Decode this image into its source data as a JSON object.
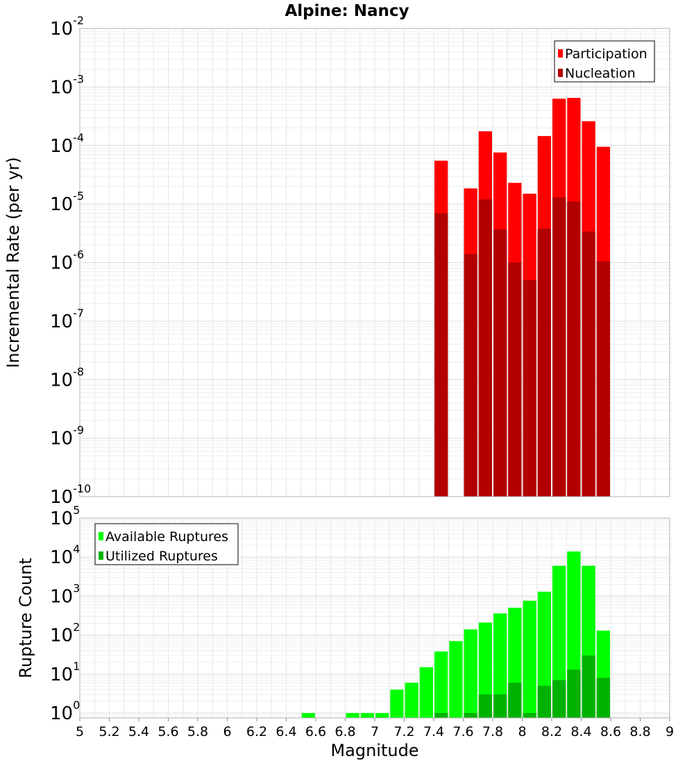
{
  "chart_data": [
    {
      "type": "bar",
      "title": "Alpine: Nancy",
      "xlabel": "",
      "ylabel": "Incremental Rate (per yr)",
      "yscale": "log",
      "ylim": [
        1e-10,
        0.01
      ],
      "xlim": [
        5,
        9
      ],
      "grid": true,
      "legend_position": "top-right",
      "bin_width": 0.1,
      "x": [
        7.4,
        7.6,
        7.7,
        7.8,
        7.9,
        8.0,
        8.1,
        8.2,
        8.3,
        8.4,
        8.5
      ],
      "series": [
        {
          "name": "Participation",
          "color": "#ff0000",
          "values": [
            5.5e-05,
            1.85e-05,
            0.000175,
            7.6e-05,
            2.3e-05,
            1.5e-05,
            0.000145,
            0.00063,
            0.00065,
            0.00026,
            9.5e-05
          ]
        },
        {
          "name": "Nucleation",
          "color": "#b20000",
          "values": [
            7e-06,
            1.4e-06,
            1.2e-05,
            3.7e-06,
            1e-06,
            5e-07,
            3.8e-06,
            1.3e-05,
            1.1e-05,
            3.4e-06,
            1.05e-06
          ]
        }
      ],
      "yticks": [
        {
          "base": "10",
          "exp": "-2"
        },
        {
          "base": "10",
          "exp": "-3"
        },
        {
          "base": "10",
          "exp": "-4"
        },
        {
          "base": "10",
          "exp": "-5"
        },
        {
          "base": "10",
          "exp": "-6"
        },
        {
          "base": "10",
          "exp": "-7"
        },
        {
          "base": "10",
          "exp": "-8"
        },
        {
          "base": "10",
          "exp": "-9"
        },
        {
          "base": "10",
          "exp": "-10"
        }
      ]
    },
    {
      "type": "bar",
      "title": "",
      "xlabel": "Magnitude",
      "ylabel": "Rupture Count",
      "yscale": "log",
      "ylim": [
        0.75,
        100000.0
      ],
      "xlim": [
        5,
        9
      ],
      "grid": true,
      "legend_position": "top-left",
      "bin_width": 0.1,
      "x": [
        6.5,
        6.8,
        6.9,
        7.0,
        7.1,
        7.2,
        7.3,
        7.4,
        7.5,
        7.6,
        7.7,
        7.8,
        7.9,
        8.0,
        8.1,
        8.2,
        8.3,
        8.4,
        8.5
      ],
      "series": [
        {
          "name": "Available Ruptures",
          "color": "#00ff00",
          "values": [
            1,
            1,
            1,
            1,
            4,
            6,
            15,
            38,
            70,
            140,
            210,
            360,
            500,
            760,
            1300,
            6000,
            14000,
            6000,
            130
          ]
        },
        {
          "name": "Utilized Ruptures",
          "color": "#00b200",
          "values": [
            0,
            0,
            0,
            0,
            0,
            0,
            0,
            1,
            0,
            1,
            3,
            3,
            6,
            1,
            5,
            7,
            13,
            30,
            8
          ]
        }
      ],
      "xticks": [
        "5",
        "5.2",
        "5.4",
        "5.6",
        "5.8",
        "6",
        "6.2",
        "6.4",
        "6.6",
        "6.8",
        "7",
        "7.2",
        "7.4",
        "7.6",
        "7.8",
        "8",
        "8.2",
        "8.4",
        "8.6",
        "8.8",
        "9"
      ],
      "yticks": [
        {
          "base": "10",
          "exp": "5"
        },
        {
          "base": "10",
          "exp": "4"
        },
        {
          "base": "10",
          "exp": "3"
        },
        {
          "base": "10",
          "exp": "2"
        },
        {
          "base": "10",
          "exp": "1"
        },
        {
          "base": "10",
          "exp": "0"
        }
      ]
    }
  ]
}
